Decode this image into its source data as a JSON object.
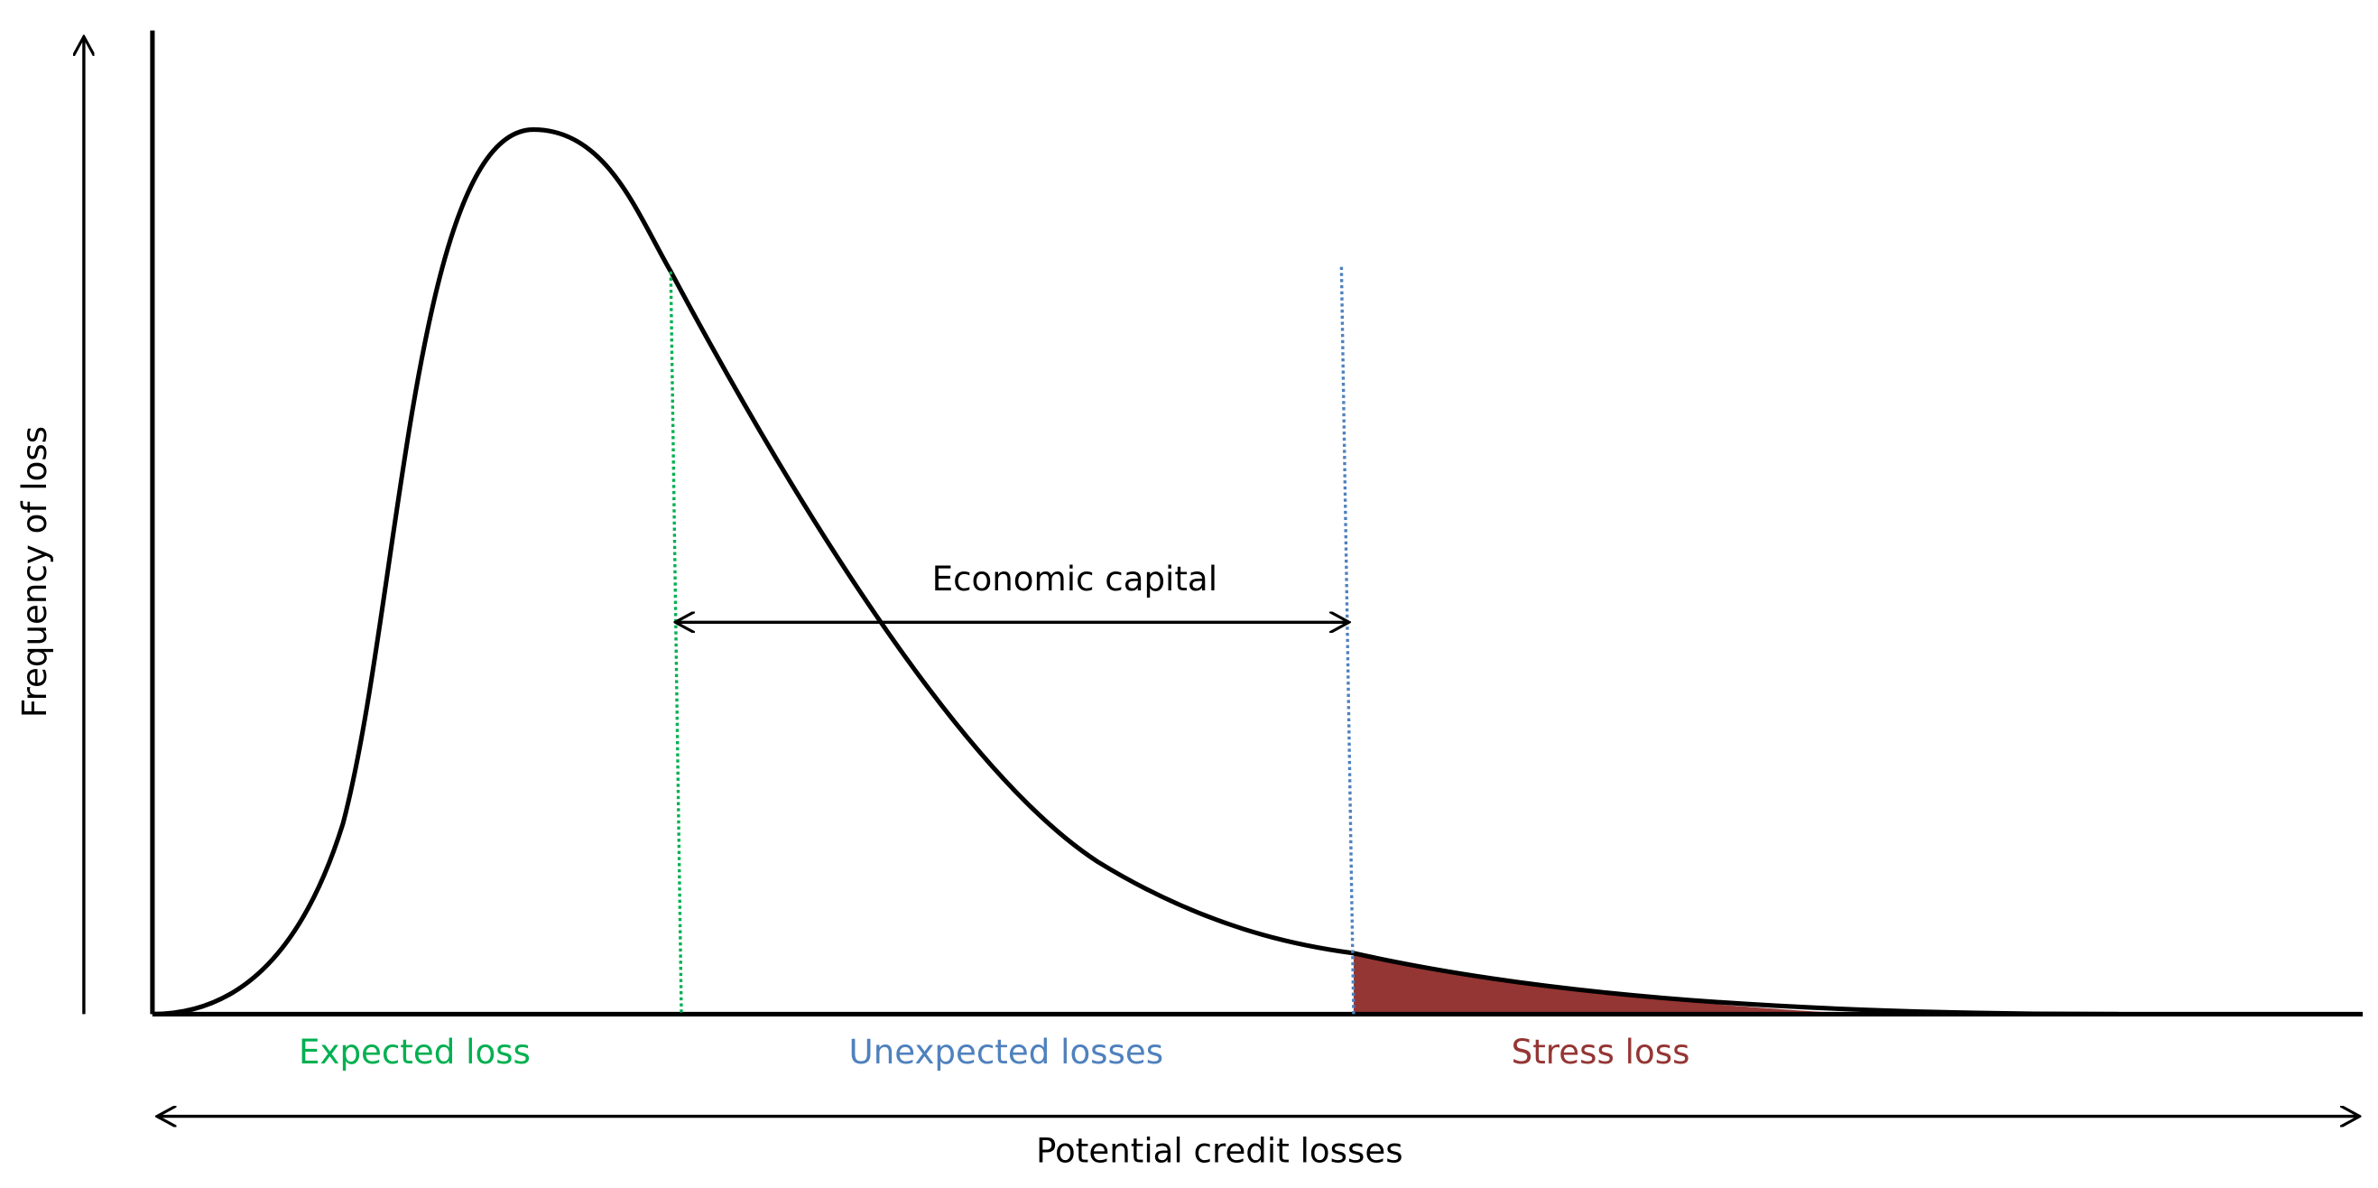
{
  "axes": {
    "x_label": "Potential credit losses",
    "y_label": "Frequency of loss"
  },
  "annotations": {
    "economic_capital": "Economic capital"
  },
  "regions": [
    {
      "label": "Expected loss"
    },
    {
      "label": "Unexpected losses"
    },
    {
      "label": "Stress loss"
    }
  ]
}
